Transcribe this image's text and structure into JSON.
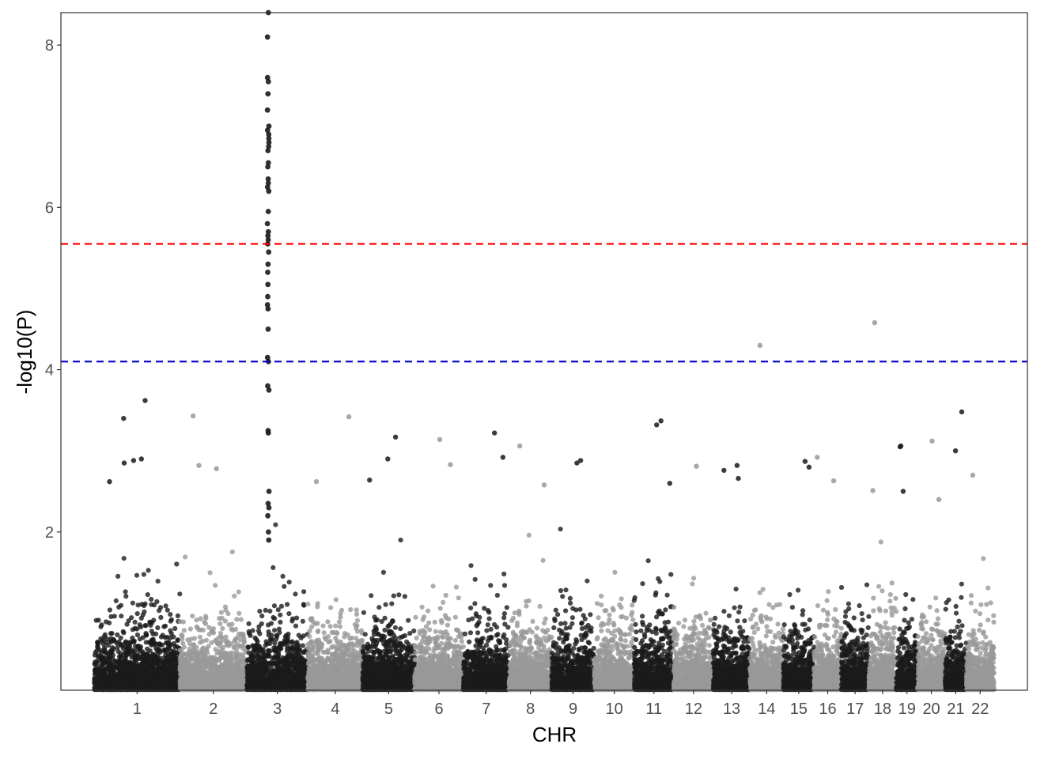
{
  "chart_data": {
    "type": "scatter",
    "title": "",
    "xlabel": "CHR",
    "ylabel": "-log10(P)",
    "ylim": [
      0.05,
      8.4
    ],
    "yticks": [
      2,
      4,
      6,
      8
    ],
    "grid": false,
    "legend": "none",
    "colors": {
      "odd": "#1a1a1a",
      "even": "#999999",
      "suggestive": "#0000cd",
      "genomewide": "#ff0000"
    },
    "thresholds": [
      {
        "name": "suggestive",
        "value": 4.1,
        "color": "#0000cd",
        "style": "dashed"
      },
      {
        "name": "genome-wide",
        "value": 5.55,
        "color": "#ff0000",
        "style": "dashed"
      }
    ],
    "chromosomes": [
      {
        "label": "1",
        "start": 0,
        "end": 2.8
      },
      {
        "label": "2",
        "start": 2.8,
        "end": 5.0
      },
      {
        "label": "3",
        "start": 5.0,
        "end": 7.0
      },
      {
        "label": "4",
        "start": 7.0,
        "end": 8.8
      },
      {
        "label": "5",
        "start": 8.8,
        "end": 10.5
      },
      {
        "label": "6",
        "start": 10.5,
        "end": 12.1
      },
      {
        "label": "7",
        "start": 12.1,
        "end": 13.6
      },
      {
        "label": "8",
        "start": 13.6,
        "end": 15.0
      },
      {
        "label": "9",
        "start": 15.0,
        "end": 16.4
      },
      {
        "label": "10",
        "start": 16.4,
        "end": 17.7
      },
      {
        "label": "11",
        "start": 17.7,
        "end": 19.0
      },
      {
        "label": "12",
        "start": 19.0,
        "end": 20.3
      },
      {
        "label": "13",
        "start": 20.3,
        "end": 21.5
      },
      {
        "label": "14",
        "start": 21.5,
        "end": 22.6
      },
      {
        "label": "15",
        "start": 22.6,
        "end": 23.6
      },
      {
        "label": "16",
        "start": 23.6,
        "end": 24.5
      },
      {
        "label": "17",
        "start": 24.5,
        "end": 25.4
      },
      {
        "label": "18",
        "start": 25.4,
        "end": 26.3
      },
      {
        "label": "19",
        "start": 26.3,
        "end": 27.0
      },
      {
        "label": "20",
        "start": 27.0,
        "end": 27.9
      },
      {
        "label": "21",
        "start": 27.9,
        "end": 28.6
      },
      {
        "label": "22",
        "start": 28.6,
        "end": 29.5
      }
    ],
    "peaks": [
      {
        "chr": "3",
        "values": [
          8.4,
          8.1,
          7.6,
          7.55,
          7.4,
          7.2,
          7.0,
          6.95,
          6.9,
          6.85,
          6.8,
          6.75,
          6.7,
          6.55,
          6.5,
          6.35,
          6.3,
          6.25,
          6.2,
          5.95,
          5.8,
          5.7,
          5.65,
          5.6,
          5.55,
          5.45,
          5.3,
          5.2,
          5.05,
          4.9,
          4.8,
          4.75,
          4.5,
          4.15,
          4.1,
          3.8,
          3.75,
          3.25,
          3.22,
          2.5,
          2.35,
          2.3,
          2.2,
          2.0,
          1.9
        ]
      }
    ],
    "top_hits": [
      {
        "chr": "1",
        "value": 3.62
      },
      {
        "chr": "1",
        "value": 3.4
      },
      {
        "chr": "1",
        "value": 2.88
      },
      {
        "chr": "1",
        "value": 2.85
      },
      {
        "chr": "1",
        "value": 2.62
      },
      {
        "chr": "1",
        "value": 2.9
      },
      {
        "chr": "2",
        "value": 3.43
      },
      {
        "chr": "2",
        "value": 2.82
      },
      {
        "chr": "2",
        "value": 2.78
      },
      {
        "chr": "4",
        "value": 3.42
      },
      {
        "chr": "4",
        "value": 2.62
      },
      {
        "chr": "5",
        "value": 3.17
      },
      {
        "chr": "5",
        "value": 2.9
      },
      {
        "chr": "5",
        "value": 2.64
      },
      {
        "chr": "6",
        "value": 3.14
      },
      {
        "chr": "6",
        "value": 2.83
      },
      {
        "chr": "7",
        "value": 3.22
      },
      {
        "chr": "7",
        "value": 2.92
      },
      {
        "chr": "8",
        "value": 3.06
      },
      {
        "chr": "8",
        "value": 2.58
      },
      {
        "chr": "9",
        "value": 2.88
      },
      {
        "chr": "9",
        "value": 2.85
      },
      {
        "chr": "11",
        "value": 3.37
      },
      {
        "chr": "11",
        "value": 3.32
      },
      {
        "chr": "11",
        "value": 2.6
      },
      {
        "chr": "12",
        "value": 2.81
      },
      {
        "chr": "13",
        "value": 2.82
      },
      {
        "chr": "13",
        "value": 2.76
      },
      {
        "chr": "13",
        "value": 2.66
      },
      {
        "chr": "14",
        "value": 4.3
      },
      {
        "chr": "15",
        "value": 2.87
      },
      {
        "chr": "15",
        "value": 2.8
      },
      {
        "chr": "16",
        "value": 2.92
      },
      {
        "chr": "16",
        "value": 2.63
      },
      {
        "chr": "18",
        "value": 4.58
      },
      {
        "chr": "18",
        "value": 2.51
      },
      {
        "chr": "19",
        "value": 3.06
      },
      {
        "chr": "19",
        "value": 3.05
      },
      {
        "chr": "19",
        "value": 2.5
      },
      {
        "chr": "20",
        "value": 3.12
      },
      {
        "chr": "20",
        "value": 2.4
      },
      {
        "chr": "21",
        "value": 3.48
      },
      {
        "chr": "21",
        "value": 3.0
      },
      {
        "chr": "22",
        "value": 2.7
      }
    ]
  }
}
